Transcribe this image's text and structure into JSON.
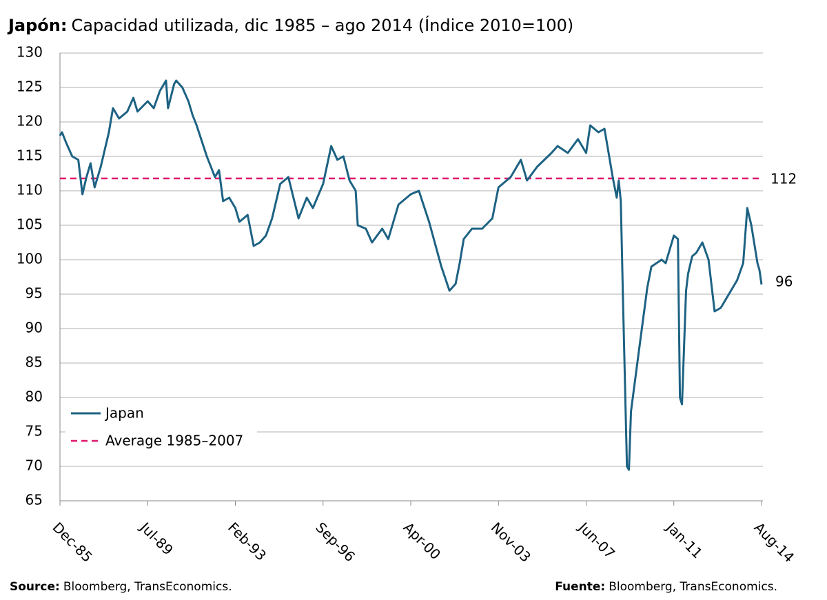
{
  "chart_data": {
    "type": "line",
    "title_bold": "Japón:",
    "title": "Capacidad utilizada, dic 1985 – ago 2014 (Índice 2010=100)",
    "ylim": [
      65,
      130
    ],
    "yticks": [
      65,
      70,
      75,
      80,
      85,
      90,
      95,
      100,
      105,
      110,
      115,
      120,
      125,
      130
    ],
    "xticks": [
      "Dec-85",
      "Jul-89",
      "Feb-93",
      "Sep-96",
      "Apr-00",
      "Nov-03",
      "Jun-07",
      "Jan-11",
      "Aug-14"
    ],
    "grid": true,
    "legend": "lower left",
    "series": [
      {
        "name": "Japan",
        "color": "#1d6283",
        "end_label": "96",
        "x": [
          "Dec-85",
          "Jan-86",
          "Mar-86",
          "Jun-86",
          "Sep-86",
          "Nov-86",
          "Jan-87",
          "Mar-87",
          "May-87",
          "Aug-87",
          "Dec-87",
          "Feb-88",
          "May-88",
          "Sep-88",
          "Dec-88",
          "Feb-89",
          "Jul-89",
          "Oct-89",
          "Jan-90",
          "Apr-90",
          "May-90",
          "Aug-90",
          "Sep-90",
          "Dec-90",
          "Mar-91",
          "May-91",
          "Jul-91",
          "Dec-91",
          "Apr-92",
          "Jun-92",
          "Aug-92",
          "Nov-92",
          "Feb-93",
          "Apr-93",
          "Aug-93",
          "Nov-93",
          "Feb-94",
          "May-94",
          "Aug-94",
          "Dec-94",
          "Apr-95",
          "Sep-95",
          "Jan-96",
          "Apr-96",
          "Sep-96",
          "Jan-97",
          "Apr-97",
          "Jul-97",
          "Oct-97",
          "Jan-98",
          "Feb-98",
          "Jun-98",
          "Sep-98",
          "Feb-99",
          "May-99",
          "Oct-99",
          "Apr-00",
          "Aug-00",
          "Jan-01",
          "Jul-01",
          "Nov-01",
          "Feb-02",
          "Apr-02",
          "Jun-02",
          "Oct-02",
          "Mar-03",
          "Aug-03",
          "Nov-03",
          "May-04",
          "Oct-04",
          "Jan-05",
          "Jun-05",
          "Jan-06",
          "Apr-06",
          "Sep-06",
          "Feb-07",
          "Jun-07",
          "Aug-07",
          "Dec-07",
          "Mar-08",
          "May-08",
          "Jul-08",
          "Sep-08",
          "Oct-08",
          "Nov-08",
          "Dec-08",
          "Feb-09",
          "Mar-09",
          "Apr-09",
          "Aug-09",
          "Dec-09",
          "Feb-10",
          "Jul-10",
          "Sep-10",
          "Jan-11",
          "Mar-11",
          "Apr-11",
          "May-11",
          "Jul-11",
          "Aug-11",
          "Oct-11",
          "Dec-11",
          "Mar-12",
          "Jun-12",
          "Sep-12",
          "Dec-12",
          "May-13",
          "Aug-13",
          "Nov-13",
          "Jan-14",
          "Mar-14",
          "Jun-14",
          "Jul-14",
          "Aug-14"
        ],
        "values": [
          118,
          118.5,
          117,
          115,
          114.5,
          109.5,
          112,
          114,
          110.5,
          113.5,
          118.5,
          122,
          120.5,
          121.5,
          123.5,
          121.5,
          123,
          122,
          124.5,
          126,
          122,
          125.5,
          126,
          125,
          123,
          121,
          119.5,
          115,
          112,
          113,
          108.5,
          109,
          107.5,
          105.5,
          106.5,
          102,
          102.5,
          103.5,
          106,
          111,
          112,
          106,
          109,
          107.5,
          111,
          116.5,
          114.5,
          115,
          111.5,
          110,
          105,
          104.5,
          102.5,
          104.5,
          103,
          108,
          109.5,
          110,
          105.5,
          99,
          95.5,
          96.5,
          99.5,
          103,
          104.5,
          104.5,
          106,
          110.5,
          112,
          114.5,
          111.5,
          113.5,
          115.5,
          116.5,
          115.5,
          117.5,
          115.5,
          119.5,
          118.5,
          119,
          115.5,
          112,
          109,
          111.5,
          108.5,
          95,
          70,
          69.5,
          78,
          87,
          96,
          99,
          100,
          99.5,
          103.5,
          103,
          80,
          79,
          95.5,
          98,
          100.5,
          101,
          102.5,
          100,
          92.5,
          93,
          95.5,
          97,
          99.5,
          107.5,
          105,
          99.5,
          98.5,
          96.4
        ]
      }
    ],
    "average_line": {
      "name": "Average 1985–2007",
      "value": 111.8,
      "value_label": "112",
      "color": "#e0156d"
    },
    "source_bold": "Source:",
    "source": "Bloomberg, TransEconomics.",
    "fuente_bold": "Fuente:",
    "fuente": "Bloomberg, TransEconomics."
  }
}
